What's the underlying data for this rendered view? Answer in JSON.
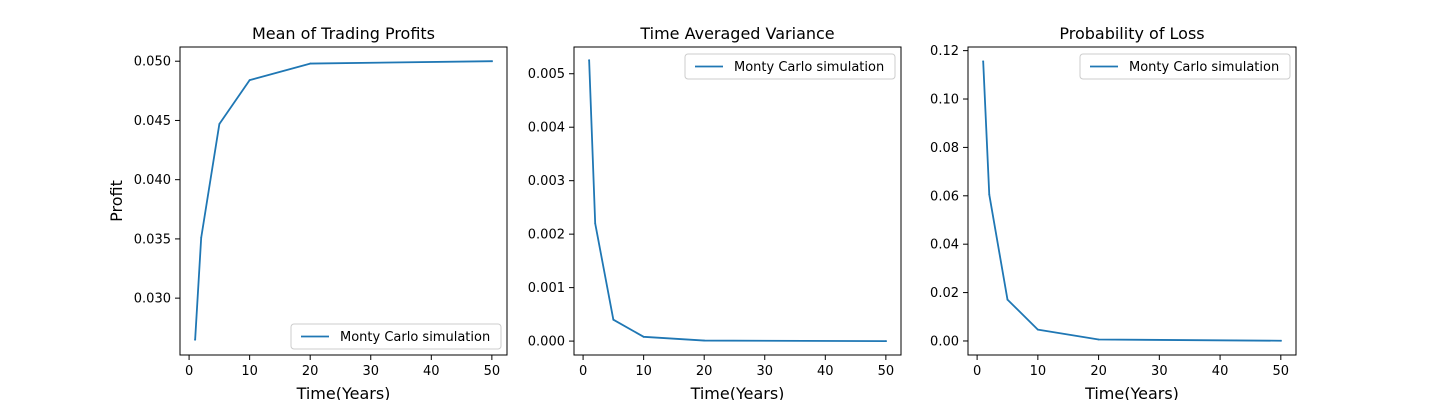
{
  "chart_data": [
    {
      "type": "line",
      "title": "Mean of Trading Profits",
      "xlabel": "Time(Years)",
      "ylabel": "Profit",
      "xlim": [
        -1.5,
        52.5
      ],
      "ylim": [
        0.0252,
        0.0512
      ],
      "xticks": [
        0,
        10,
        20,
        30,
        40,
        50
      ],
      "xtick_labels": [
        "0",
        "10",
        "20",
        "30",
        "40",
        "50"
      ],
      "yticks": [
        0.03,
        0.035,
        0.04,
        0.045,
        0.05
      ],
      "ytick_labels": [
        "0.030",
        "0.035",
        "0.040",
        "0.045",
        "0.050"
      ],
      "legend_position": "lower-right",
      "series": [
        {
          "name": "Monty Carlo simulation",
          "color": "#1f77b4",
          "x": [
            1,
            2,
            5,
            10,
            20,
            50
          ],
          "y": [
            0.0265,
            0.0351,
            0.0447,
            0.0484,
            0.0498,
            0.05
          ]
        }
      ]
    },
    {
      "type": "line",
      "title": "Time Averaged Variance",
      "xlabel": "Time(Years)",
      "ylabel": "",
      "xlim": [
        -1.5,
        52.5
      ],
      "ylim": [
        -0.00026,
        0.0055
      ],
      "xticks": [
        0,
        10,
        20,
        30,
        40,
        50
      ],
      "xtick_labels": [
        "0",
        "10",
        "20",
        "30",
        "40",
        "50"
      ],
      "yticks": [
        0.0,
        0.001,
        0.002,
        0.003,
        0.004,
        0.005
      ],
      "ytick_labels": [
        "0.000",
        "0.001",
        "0.002",
        "0.003",
        "0.004",
        "0.005"
      ],
      "legend_position": "upper-right",
      "series": [
        {
          "name": "Monty Carlo simulation",
          "color": "#1f77b4",
          "x": [
            1,
            2,
            5,
            10,
            20,
            50
          ],
          "y": [
            0.00525,
            0.0022,
            0.0004,
            8e-05,
            1e-05,
            0.0
          ]
        }
      ]
    },
    {
      "type": "line",
      "title": "Probability of Loss",
      "xlabel": "Time(Years)",
      "ylabel": "",
      "xlim": [
        -1.5,
        52.5
      ],
      "ylim": [
        -0.0058,
        0.1215
      ],
      "xticks": [
        0,
        10,
        20,
        30,
        40,
        50
      ],
      "xtick_labels": [
        "0",
        "10",
        "20",
        "30",
        "40",
        "50"
      ],
      "yticks": [
        0.0,
        0.02,
        0.04,
        0.06,
        0.08,
        0.1,
        0.12
      ],
      "ytick_labels": [
        "0.00",
        "0.02",
        "0.04",
        "0.06",
        "0.08",
        "0.10",
        "0.12"
      ],
      "legend_position": "upper-right",
      "series": [
        {
          "name": "Monty Carlo simulation",
          "color": "#1f77b4",
          "x": [
            1,
            2,
            5,
            10,
            20,
            50
          ],
          "y": [
            0.1155,
            0.0605,
            0.0171,
            0.0047,
            0.0006,
            0.0001
          ]
        }
      ]
    }
  ]
}
